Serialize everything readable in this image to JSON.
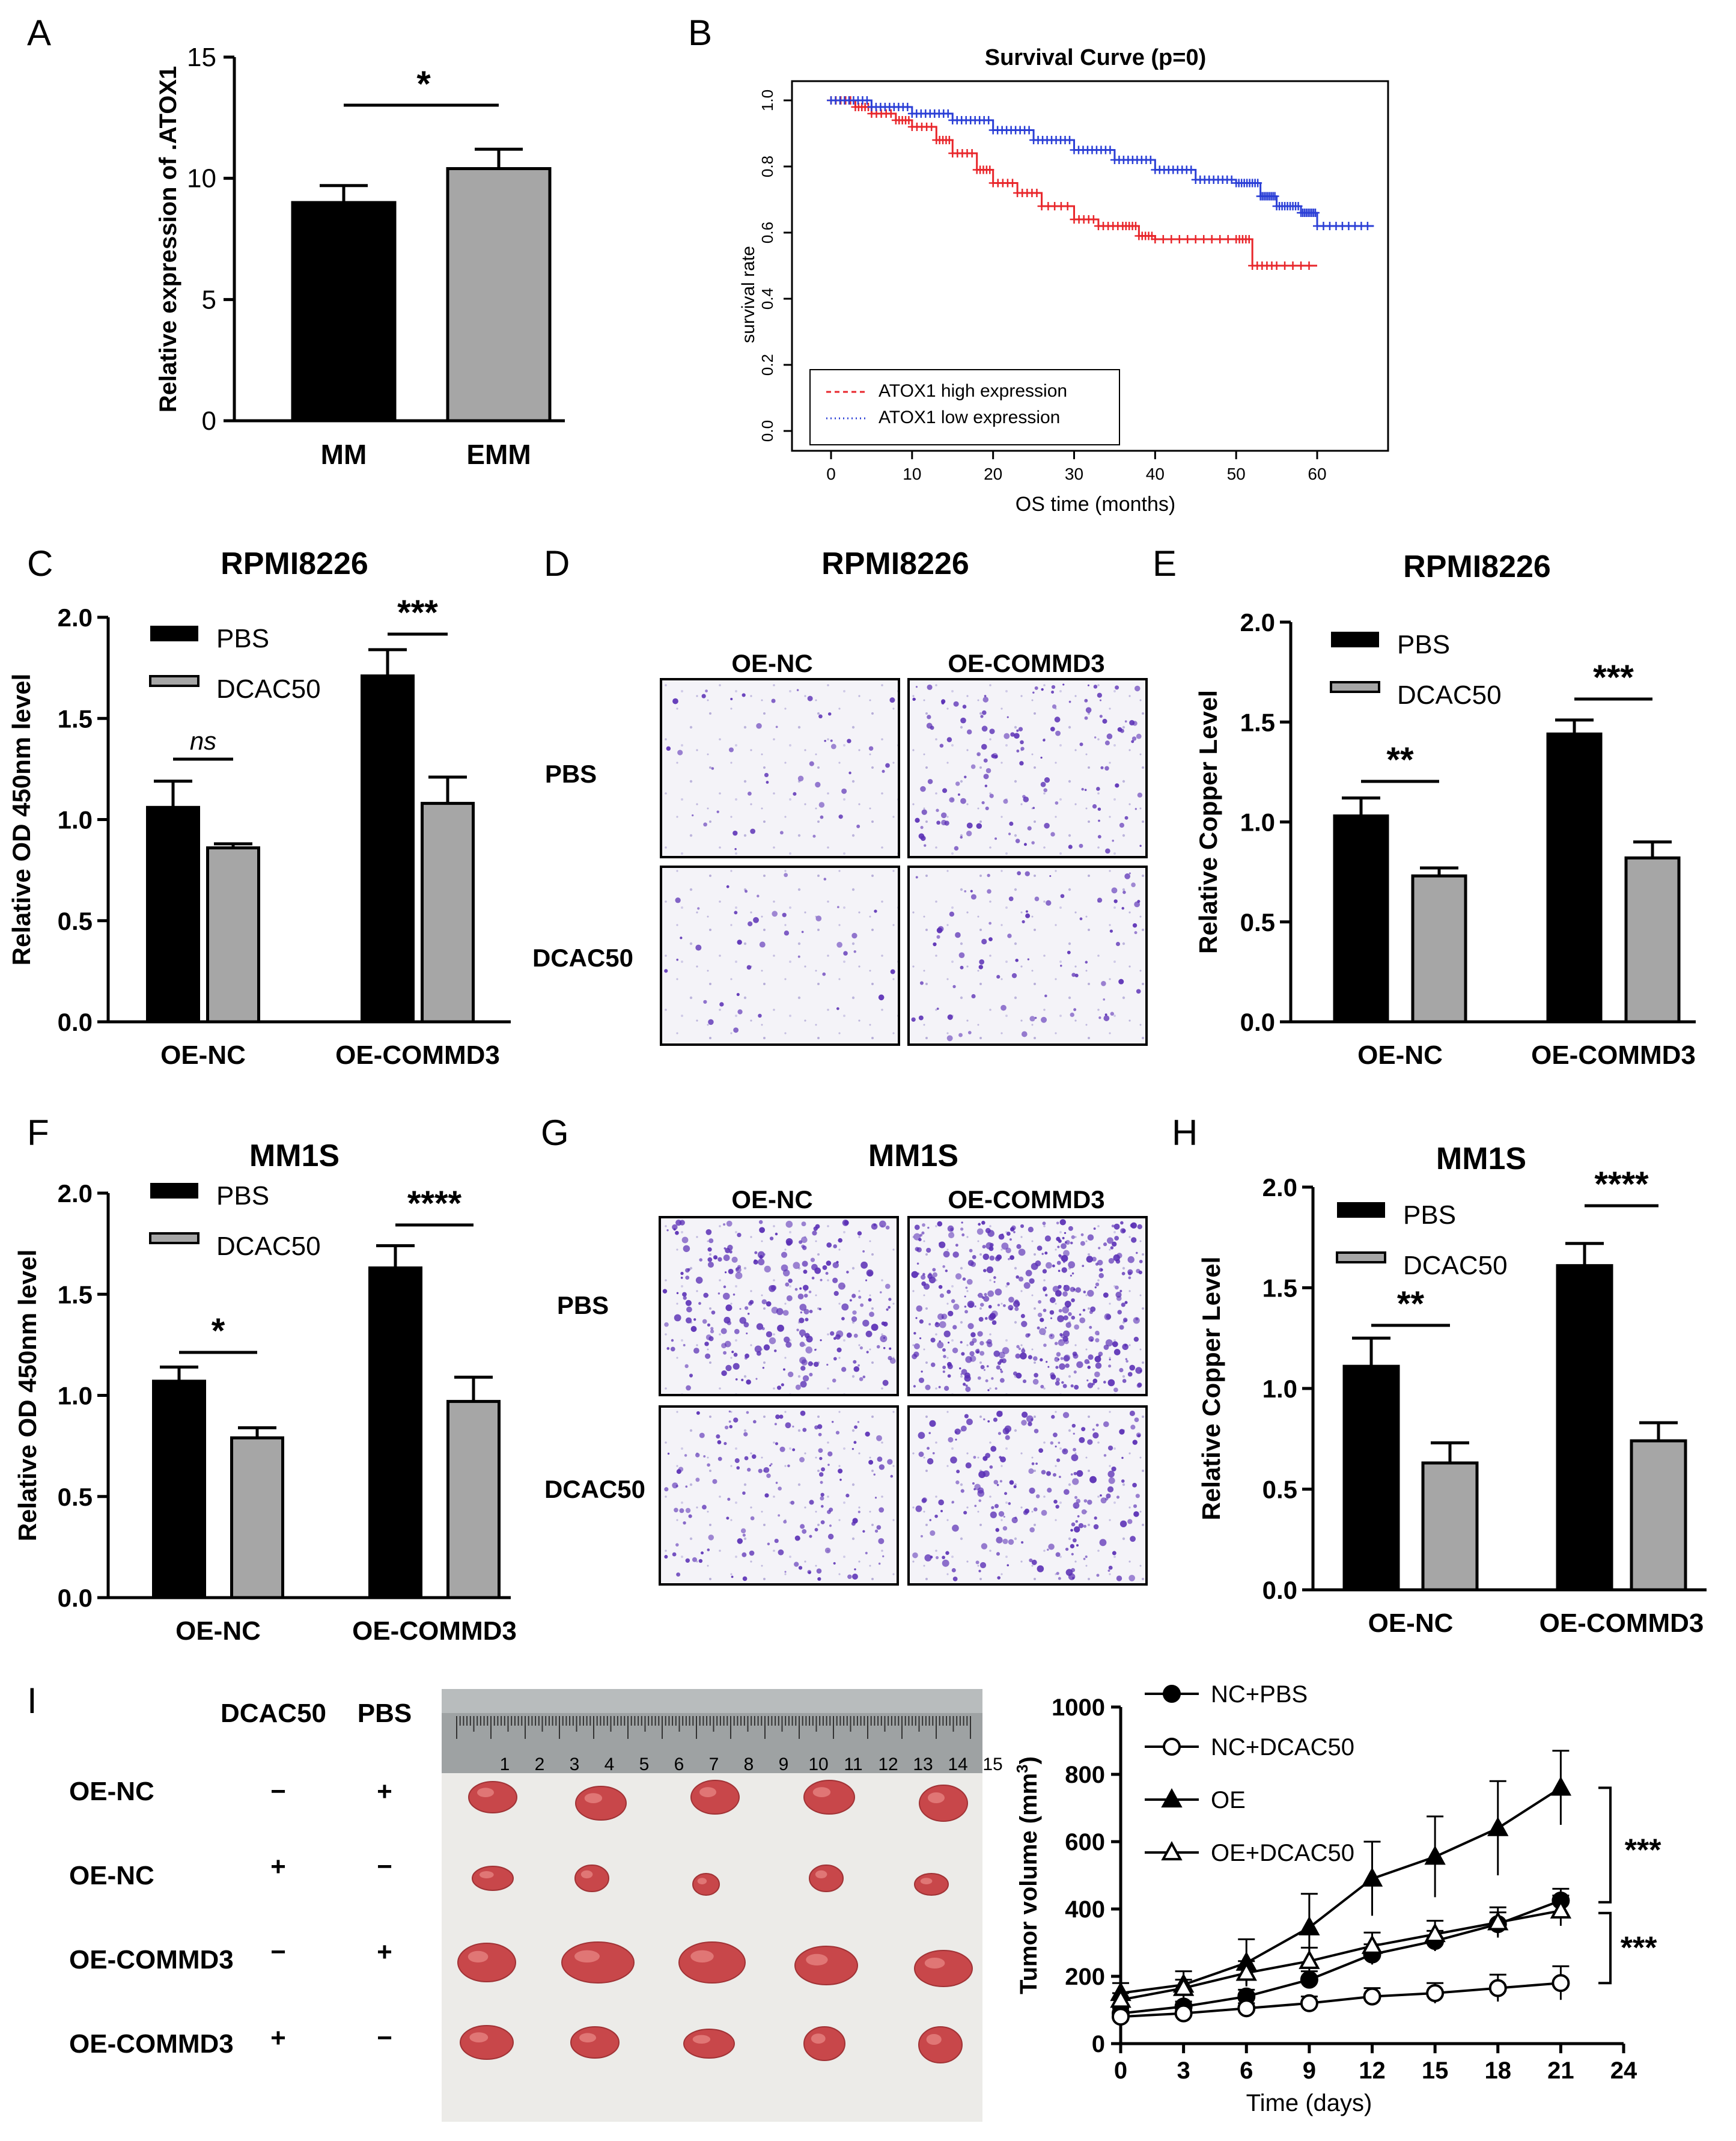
{
  "panel_letters": [
    "A",
    "B",
    "C",
    "D",
    "E",
    "F",
    "G",
    "H",
    "I"
  ],
  "colors": {
    "black_bar": "#000000",
    "grey_bar": "#a6a6a6",
    "high_expr": "#e8262b",
    "low_expr": "#2b3fd6",
    "membrane_bg": "#f3f2f7",
    "stain": "#5a2fb5",
    "tumor": "#c8474a",
    "photo_bg": "#ecebe9"
  },
  "chart_data": [
    {
      "id": "A",
      "type": "bar",
      "categories": [
        "MM",
        "EMM"
      ],
      "values": [
        9.0,
        10.4
      ],
      "errors": [
        0.7,
        0.8
      ],
      "ylabel": "Relative expression of .ATOX1",
      "ylim": [
        0,
        15
      ],
      "yticks": [
        "0",
        "5",
        "10",
        "15"
      ],
      "significance": [
        {
          "label": "*",
          "between": [
            "MM",
            "EMM"
          ]
        }
      ]
    },
    {
      "id": "B",
      "type": "line",
      "title": "Survival Curve (p=0)",
      "xlabel": "OS time (months)",
      "ylabel": "survival rate",
      "xlim": [
        0,
        70
      ],
      "xticks": [
        "0",
        "10",
        "20",
        "30",
        "40",
        "50",
        "60"
      ],
      "ylim": [
        0,
        1
      ],
      "yticks": [
        "0.0",
        "0.2",
        "0.4",
        "0.6",
        "0.8",
        "1.0"
      ],
      "legend": [
        "ATOX1 high expression",
        "ATOX1 low expression"
      ],
      "series": [
        {
          "name": "ATOX1 high expression",
          "x": [
            0,
            3,
            5,
            8,
            10,
            13,
            15,
            18,
            20,
            23,
            26,
            30,
            33,
            36,
            38,
            40,
            45,
            50,
            52,
            55,
            60
          ],
          "y": [
            1.0,
            0.98,
            0.96,
            0.94,
            0.92,
            0.88,
            0.84,
            0.79,
            0.75,
            0.72,
            0.68,
            0.64,
            0.62,
            0.62,
            0.59,
            0.58,
            0.58,
            0.58,
            0.5,
            0.5,
            0.5
          ]
        },
        {
          "name": "ATOX1 low expression",
          "x": [
            0,
            5,
            10,
            15,
            20,
            25,
            30,
            35,
            40,
            45,
            50,
            53,
            55,
            58,
            60,
            67
          ],
          "y": [
            1.0,
            0.98,
            0.96,
            0.94,
            0.91,
            0.88,
            0.85,
            0.82,
            0.79,
            0.76,
            0.75,
            0.71,
            0.68,
            0.66,
            0.62,
            0.62
          ]
        }
      ]
    },
    {
      "id": "C",
      "type": "bar",
      "title": "RPMI8226",
      "categories": [
        "OE-NC",
        "OE-COMMD3"
      ],
      "series": [
        {
          "name": "PBS",
          "values": [
            1.06,
            1.71
          ],
          "errors": [
            0.13,
            0.13
          ]
        },
        {
          "name": "DCAC50",
          "values": [
            0.86,
            1.08
          ],
          "errors": [
            0.02,
            0.13
          ]
        }
      ],
      "ylabel": "Relative OD 450nm level",
      "ylim": [
        0,
        2.0
      ],
      "yticks": [
        "0.0",
        "0.5",
        "1.0",
        "1.5",
        "2.0"
      ],
      "significance": [
        "ns",
        "***"
      ]
    },
    {
      "id": "E",
      "type": "bar",
      "title": "RPMI8226",
      "categories": [
        "OE-NC",
        "OE-COMMD3"
      ],
      "series": [
        {
          "name": "PBS",
          "values": [
            1.03,
            1.44
          ],
          "errors": [
            0.09,
            0.07
          ]
        },
        {
          "name": "DCAC50",
          "values": [
            0.73,
            0.82
          ],
          "errors": [
            0.04,
            0.08
          ]
        }
      ],
      "ylabel": "Relative Copper Level",
      "ylim": [
        0,
        2.0
      ],
      "yticks": [
        "0.0",
        "0.5",
        "1.0",
        "1.5",
        "2.0"
      ],
      "significance": [
        "**",
        "***"
      ]
    },
    {
      "id": "F",
      "type": "bar",
      "title": "MM1S",
      "categories": [
        "OE-NC",
        "OE-COMMD3"
      ],
      "series": [
        {
          "name": "PBS",
          "values": [
            1.07,
            1.63
          ],
          "errors": [
            0.07,
            0.11
          ]
        },
        {
          "name": "DCAC50",
          "values": [
            0.79,
            0.97
          ],
          "errors": [
            0.05,
            0.12
          ]
        }
      ],
      "ylabel": "Relative OD 450nm level",
      "ylim": [
        0,
        2.0
      ],
      "yticks": [
        "0.0",
        "0.5",
        "1.0",
        "1.5",
        "2.0"
      ],
      "significance": [
        "*",
        "****"
      ]
    },
    {
      "id": "H",
      "type": "bar",
      "title": "MM1S",
      "categories": [
        "OE-NC",
        "OE-COMMD3"
      ],
      "series": [
        {
          "name": "PBS",
          "values": [
            1.11,
            1.61
          ],
          "errors": [
            0.14,
            0.11
          ]
        },
        {
          "name": "DCAC50",
          "values": [
            0.63,
            0.74
          ],
          "errors": [
            0.1,
            0.09
          ]
        }
      ],
      "ylabel": "Relative Copper Level",
      "ylim": [
        0,
        2.0
      ],
      "yticks": [
        "0.0",
        "0.5",
        "1.0",
        "1.5",
        "2.0"
      ],
      "significance": [
        "**",
        "****"
      ]
    },
    {
      "id": "I",
      "type": "line",
      "xlabel": "Time (days)",
      "ylabel": "Tumor volume (mm3)",
      "ylabel_main": "Tumor volume (mm",
      "ylabel_sup": "3",
      "ylabel_close": ")",
      "xlim": [
        0,
        24
      ],
      "xticks": [
        "0",
        "3",
        "6",
        "9",
        "12",
        "15",
        "18",
        "21",
        "24"
      ],
      "ylim": [
        0,
        1000
      ],
      "yticks": [
        "0",
        "200",
        "400",
        "600",
        "800",
        "1000"
      ],
      "x": [
        0,
        3,
        6,
        9,
        12,
        15,
        18,
        21
      ],
      "series": [
        {
          "name": "NC+PBS",
          "marker": "filled-circle",
          "values": [
            90,
            110,
            140,
            190,
            265,
            305,
            355,
            425
          ],
          "errors": [
            15,
            15,
            20,
            25,
            30,
            30,
            35,
            35
          ]
        },
        {
          "name": "NC+DCAC50",
          "marker": "open-circle",
          "values": [
            80,
            90,
            105,
            120,
            140,
            150,
            165,
            180
          ],
          "errors": [
            10,
            12,
            15,
            20,
            25,
            30,
            40,
            50
          ]
        },
        {
          "name": "OE",
          "marker": "filled-triangle",
          "values": [
            150,
            175,
            240,
            345,
            490,
            555,
            640,
            760
          ],
          "errors": [
            30,
            40,
            70,
            100,
            110,
            120,
            140,
            110
          ]
        },
        {
          "name": "OE+DCAC50",
          "marker": "open-triangle",
          "values": [
            130,
            165,
            210,
            245,
            290,
            325,
            360,
            395
          ],
          "errors": [
            20,
            25,
            35,
            40,
            40,
            40,
            45,
            45
          ]
        }
      ],
      "significance": [
        "***",
        "***"
      ]
    }
  ],
  "panel_d": {
    "title": "RPMI8226",
    "col_labels": [
      "OE-NC",
      "OE-COMMD3"
    ],
    "row_labels": [
      "PBS",
      "DCAC50"
    ]
  },
  "panel_g": {
    "title": "MM1S",
    "col_labels": [
      "OE-NC",
      "OE-COMMD3"
    ],
    "row_labels": [
      "PBS",
      "DCAC50"
    ]
  },
  "panel_i_table": {
    "col_headers": [
      "DCAC50",
      "PBS"
    ],
    "rows": [
      {
        "label": "OE-NC",
        "dcac50": "−",
        "pbs": "+"
      },
      {
        "label": "OE-NC",
        "dcac50": "+",
        "pbs": "−"
      },
      {
        "label": "OE-COMMD3",
        "dcac50": "−",
        "pbs": "+"
      },
      {
        "label": "OE-COMMD3",
        "dcac50": "+",
        "pbs": "−"
      }
    ],
    "ruler_numbers": [
      "1",
      "2",
      "3",
      "4",
      "5",
      "6",
      "7",
      "8",
      "9",
      "10",
      "11",
      "12",
      "13",
      "14",
      "15"
    ]
  }
}
